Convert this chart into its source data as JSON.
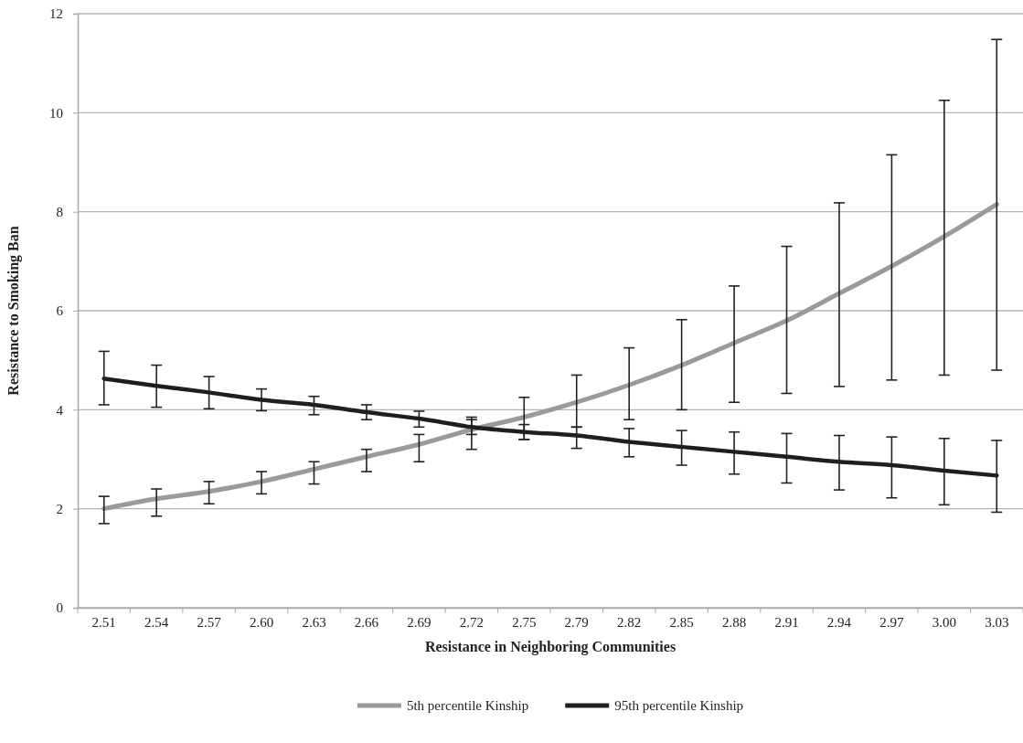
{
  "chart_data": {
    "type": "line",
    "xlabel": "Resistance in Neighboring Communities",
    "ylabel": "Resistance to Smoking Ban",
    "categories": [
      "2.51",
      "2.54",
      "2.57",
      "2.60",
      "2.63",
      "2.66",
      "2.69",
      "2.72",
      "2.75",
      "2.79",
      "2.82",
      "2.85",
      "2.88",
      "2.91",
      "2.94",
      "2.97",
      "3.00",
      "3.03"
    ],
    "series": [
      {
        "name": "5th percentile Kinship",
        "color": "#9a9a9a",
        "values": [
          2.0,
          2.2,
          2.35,
          2.55,
          2.8,
          3.05,
          3.3,
          3.6,
          3.85,
          4.15,
          4.5,
          4.9,
          5.35,
          5.8,
          6.35,
          6.9,
          7.5,
          8.15
        ],
        "errors": [
          [
            1.7,
            2.25
          ],
          [
            1.85,
            2.4
          ],
          [
            2.1,
            2.55
          ],
          [
            2.3,
            2.75
          ],
          [
            2.5,
            2.95
          ],
          [
            2.75,
            3.2
          ],
          [
            2.95,
            3.5
          ],
          [
            3.2,
            3.85
          ],
          [
            3.4,
            4.25
          ],
          [
            3.65,
            4.7
          ],
          [
            3.8,
            5.25
          ],
          [
            4.0,
            5.82
          ],
          [
            4.15,
            6.5
          ],
          [
            4.33,
            7.3
          ],
          [
            4.47,
            8.18
          ],
          [
            4.6,
            9.15
          ],
          [
            4.7,
            10.25
          ],
          [
            4.8,
            11.48
          ]
        ]
      },
      {
        "name": "95th percentile Kinship",
        "color": "#1e1e1e",
        "values": [
          4.63,
          4.48,
          4.35,
          4.2,
          4.1,
          3.95,
          3.82,
          3.65,
          3.55,
          3.48,
          3.35,
          3.25,
          3.15,
          3.05,
          2.95,
          2.88,
          2.77,
          2.67
        ],
        "errors": [
          [
            4.1,
            5.18
          ],
          [
            4.05,
            4.9
          ],
          [
            4.02,
            4.67
          ],
          [
            3.98,
            4.42
          ],
          [
            3.9,
            4.27
          ],
          [
            3.8,
            4.1
          ],
          [
            3.65,
            3.97
          ],
          [
            3.5,
            3.8
          ],
          [
            3.4,
            3.7
          ],
          [
            3.22,
            3.65
          ],
          [
            3.05,
            3.62
          ],
          [
            2.88,
            3.58
          ],
          [
            2.7,
            3.55
          ],
          [
            2.52,
            3.52
          ],
          [
            2.38,
            3.48
          ],
          [
            2.22,
            3.45
          ],
          [
            2.08,
            3.42
          ],
          [
            1.93,
            3.38
          ]
        ]
      }
    ],
    "ylim": [
      0,
      12
    ],
    "yticks": [
      0,
      2,
      4,
      6,
      8,
      10,
      12
    ],
    "grid": "y",
    "legend": "bottom",
    "marker": "none",
    "line_style": "solid"
  }
}
